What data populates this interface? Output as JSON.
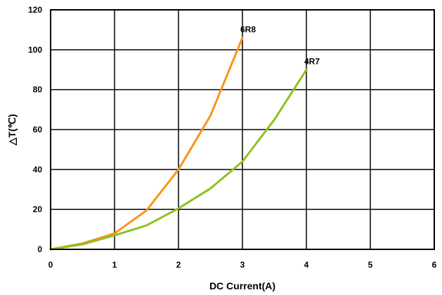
{
  "chart_data": {
    "type": "line",
    "title": "",
    "xlabel": "DC Current(A)",
    "ylabel": "△T(℃)",
    "xlim": [
      0,
      6
    ],
    "ylim": [
      0,
      120
    ],
    "xticks": [
      "0",
      "1",
      "2",
      "3",
      "4",
      "5",
      "6"
    ],
    "yticks": [
      "0",
      "20",
      "40",
      "60",
      "80",
      "100",
      "120"
    ],
    "grid": true,
    "legend": "none",
    "series": [
      {
        "name": "6R8",
        "color": "#F7941D",
        "x": [
          0,
          0.5,
          1.0,
          1.5,
          2.0,
          2.5,
          3.0
        ],
        "y": [
          0,
          3,
          8,
          19.5,
          40,
          67,
          106
        ]
      },
      {
        "name": "4R7",
        "color": "#8DC21F",
        "x": [
          0,
          0.5,
          1.0,
          1.5,
          2.0,
          2.5,
          3.0,
          3.5,
          4.0
        ],
        "y": [
          0,
          2.5,
          7,
          12,
          20.5,
          30.5,
          44,
          65,
          90
        ]
      }
    ]
  }
}
